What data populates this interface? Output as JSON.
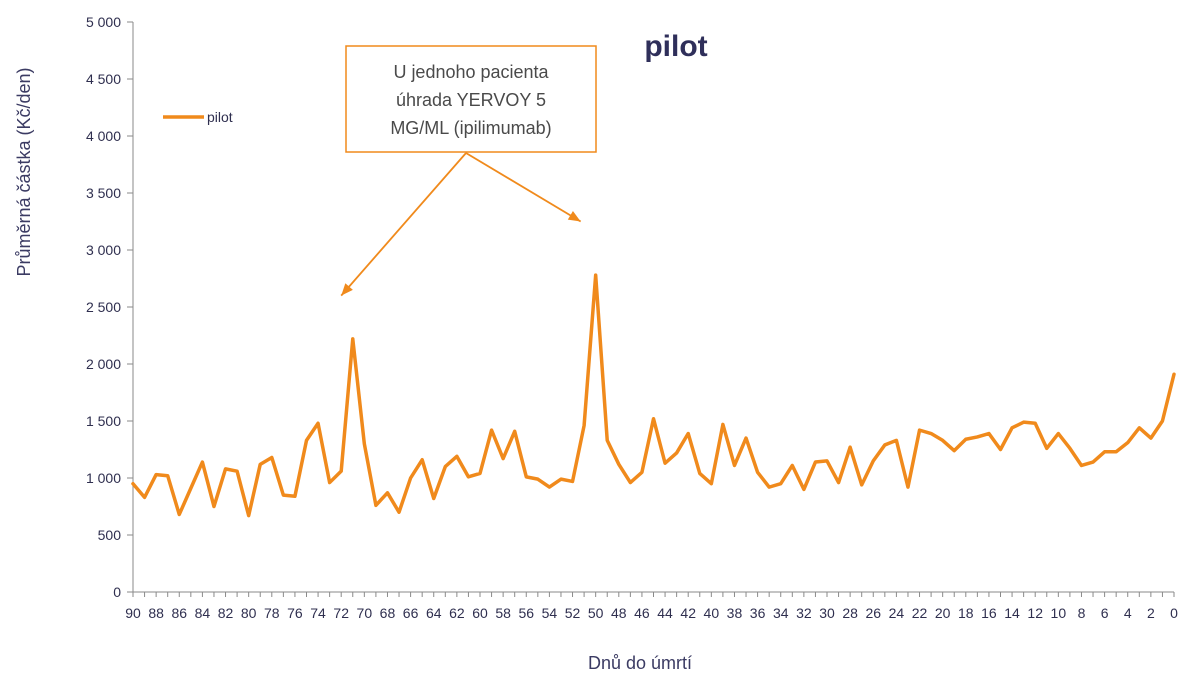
{
  "chart_data": {
    "type": "line",
    "title": "pilot",
    "xlabel": "Dnů do úmrtí",
    "ylabel": "Průměrná částka (Kč/den)",
    "ylim": [
      0,
      5000
    ],
    "ytick_values": [
      0,
      500,
      1000,
      1500,
      2000,
      2500,
      3000,
      3500,
      4000,
      4500,
      5000
    ],
    "ytick_labels": [
      "0",
      "500",
      "1 000",
      "1 500",
      "2 000",
      "2 500",
      "3 000",
      "3 500",
      "4 000",
      "4 500",
      "5 000"
    ],
    "xlim": [
      90,
      0
    ],
    "xtick_values": [
      90,
      88,
      86,
      84,
      82,
      80,
      78,
      76,
      74,
      72,
      70,
      68,
      66,
      64,
      62,
      60,
      58,
      56,
      54,
      52,
      50,
      48,
      46,
      44,
      42,
      40,
      38,
      36,
      34,
      32,
      30,
      28,
      26,
      24,
      22,
      20,
      18,
      16,
      14,
      12,
      10,
      8,
      6,
      4,
      2,
      0
    ],
    "xtick_labels": [
      "90",
      "88",
      "86",
      "84",
      "82",
      "80",
      "78",
      "76",
      "74",
      "72",
      "70",
      "68",
      "66",
      "64",
      "62",
      "60",
      "58",
      "56",
      "54",
      "52",
      "50",
      "48",
      "46",
      "44",
      "42",
      "40",
      "38",
      "36",
      "34",
      "32",
      "30",
      "28",
      "26",
      "24",
      "22",
      "20",
      "18",
      "16",
      "14",
      "12",
      "10",
      "8",
      "6",
      "4",
      "2",
      "0"
    ],
    "legend_position": "upper-left",
    "grid": false,
    "series": [
      {
        "name": "pilot",
        "color": "#f08a1c",
        "x": [
          90,
          89,
          88,
          87,
          86,
          85,
          84,
          83,
          82,
          81,
          80,
          79,
          78,
          77,
          76,
          75,
          74,
          73,
          72,
          71,
          70,
          69,
          68,
          67,
          66,
          65,
          64,
          63,
          62,
          61,
          60,
          59,
          58,
          57,
          56,
          55,
          54,
          53,
          52,
          51,
          50,
          49,
          48,
          47,
          46,
          45,
          44,
          43,
          42,
          41,
          40,
          39,
          38,
          37,
          36,
          35,
          34,
          33,
          32,
          31,
          30,
          29,
          28,
          27,
          26,
          25,
          24,
          23,
          22,
          21,
          20,
          19,
          18,
          17,
          16,
          15,
          14,
          13,
          12,
          11,
          10,
          9,
          8,
          7,
          6,
          5,
          4,
          3,
          2,
          1,
          0
        ],
        "y": [
          950,
          830,
          1030,
          1020,
          680,
          910,
          1140,
          750,
          1080,
          1060,
          670,
          1120,
          1180,
          850,
          840,
          1330,
          1480,
          960,
          1060,
          2220,
          1300,
          760,
          870,
          700,
          1000,
          1160,
          820,
          1100,
          1190,
          1010,
          1040,
          1420,
          1170,
          1410,
          1010,
          990,
          920,
          990,
          970,
          1460,
          2780,
          1330,
          1120,
          960,
          1050,
          1520,
          1130,
          1220,
          1390,
          1040,
          950,
          1470,
          1110,
          1350,
          1050,
          920,
          950,
          1110,
          900,
          1140,
          1150,
          960,
          1270,
          940,
          1150,
          1290,
          1330,
          920,
          1420,
          1390,
          1330,
          1240,
          1340,
          1360,
          1390,
          1250,
          1440,
          1490,
          1480,
          1260,
          1390,
          1260,
          1110,
          1140,
          1230,
          1230,
          1310,
          1440,
          1350,
          1500,
          1910
        ]
      }
    ],
    "annotation": {
      "lines": [
        "U jednoho pacienta",
        "úhrada YERVOY 5",
        "MG/ML (ipilimumab)"
      ],
      "targets_x": [
        72,
        50
      ],
      "color": "#f08a1c"
    }
  }
}
